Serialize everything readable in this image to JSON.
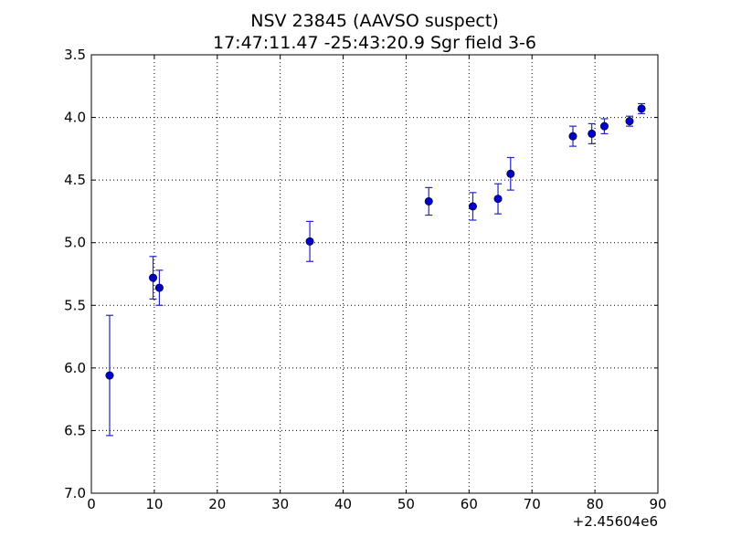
{
  "chart_data": {
    "type": "scatter",
    "title": "NSV 23845  (AAVSO suspect)",
    "subtitle": "17:47:11.47 -25:43:20.9 Sgr field 3-6",
    "xlabel": "",
    "ylabel": "",
    "x_offset_label": "+2.45604e6",
    "xlim": [
      0,
      90
    ],
    "ylim": [
      7.0,
      3.5
    ],
    "y_inverted": true,
    "grid": true,
    "grid_style": "dotted",
    "x_ticks": [
      0,
      10,
      20,
      30,
      40,
      50,
      60,
      70,
      80,
      90
    ],
    "x_tick_labels": [
      "0",
      "10",
      "20",
      "30",
      "40",
      "50",
      "60",
      "70",
      "80",
      "90"
    ],
    "y_ticks": [
      3.5,
      4.0,
      4.5,
      5.0,
      5.5,
      6.0,
      6.5,
      7.0
    ],
    "y_tick_labels": [
      "3.5",
      "4.0",
      "4.5",
      "5.0",
      "5.5",
      "6.0",
      "6.5",
      "7.0"
    ],
    "colors": {
      "marker": "#0000cc",
      "errorbar": "#2424c8",
      "grid": "#000000",
      "axes": "#000000"
    },
    "series": [
      {
        "points": [
          {
            "x": 2.9,
            "y": 6.06,
            "err": 0.48
          },
          {
            "x": 9.8,
            "y": 5.28,
            "err": 0.17
          },
          {
            "x": 10.8,
            "y": 5.36,
            "err": 0.14
          },
          {
            "x": 34.7,
            "y": 4.99,
            "err": 0.16
          },
          {
            "x": 53.6,
            "y": 4.67,
            "err": 0.11
          },
          {
            "x": 60.6,
            "y": 4.71,
            "err": 0.11
          },
          {
            "x": 64.6,
            "y": 4.65,
            "err": 0.12
          },
          {
            "x": 66.6,
            "y": 4.45,
            "err": 0.13
          },
          {
            "x": 76.5,
            "y": 4.15,
            "err": 0.08
          },
          {
            "x": 79.5,
            "y": 4.13,
            "err": 0.08
          },
          {
            "x": 81.5,
            "y": 4.07,
            "err": 0.06
          },
          {
            "x": 85.5,
            "y": 4.03,
            "err": 0.04
          },
          {
            "x": 87.4,
            "y": 3.93,
            "err": 0.04
          }
        ]
      }
    ]
  }
}
